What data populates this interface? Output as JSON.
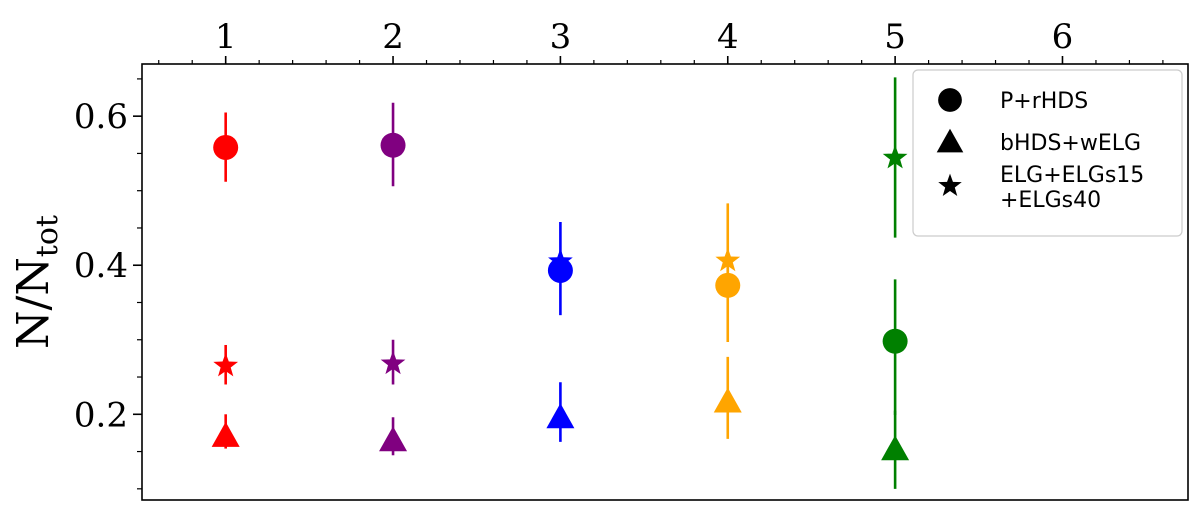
{
  "chart_data": {
    "type": "scatter",
    "title": "",
    "xlabel": "",
    "ylabel": {
      "main": "N/N",
      "sub": "tot"
    },
    "xlim": [
      0.5,
      6.75
    ],
    "ylim": [
      0.085,
      0.67
    ],
    "x_ticks": [
      "1",
      "2",
      "3",
      "4",
      "5",
      "6"
    ],
    "y_ticks": [
      "0.2",
      "0.4",
      "0.6"
    ],
    "x_axis_position": "top",
    "grid": false,
    "legend_position": "top-right",
    "group_colors": [
      "#ff0000",
      "#800080",
      "#0000ff",
      "#ffa500",
      "#008000"
    ],
    "series": [
      {
        "name": "P+rHDS",
        "marker": "circle",
        "x": [
          1,
          2,
          3,
          4,
          5
        ],
        "y": [
          0.558,
          0.561,
          0.393,
          0.373,
          0.298
        ],
        "err_low": [
          0.512,
          0.506,
          0.333,
          0.297,
          0.199
        ],
        "err_high": [
          0.605,
          0.618,
          0.418,
          0.398,
          0.381
        ]
      },
      {
        "name": "bHDS+wELG",
        "marker": "triangle",
        "x": [
          1,
          2,
          3,
          4,
          5
        ],
        "y": [
          0.171,
          0.165,
          0.196,
          0.217,
          0.153
        ],
        "err_low": [
          0.154,
          0.145,
          0.163,
          0.167,
          0.1
        ],
        "err_high": [
          0.2,
          0.196,
          0.243,
          0.277,
          0.205
        ]
      },
      {
        "name": "ELG+ELGs15\n+ELGs40",
        "marker": "star",
        "x": [
          1,
          2,
          3,
          4,
          5
        ],
        "y": [
          0.265,
          0.268,
          0.405,
          0.406,
          0.544
        ],
        "err_low": [
          0.24,
          0.24,
          0.377,
          0.386,
          0.437
        ],
        "err_high": [
          0.293,
          0.3,
          0.458,
          0.483,
          0.652
        ]
      }
    ],
    "legend": [
      {
        "label_lines": [
          "P+rHDS"
        ],
        "marker": "circle"
      },
      {
        "label_lines": [
          "bHDS+wELG"
        ],
        "marker": "triangle"
      },
      {
        "label_lines": [
          "ELG+ELGs15",
          "+ELGs40"
        ],
        "marker": "star"
      }
    ]
  }
}
